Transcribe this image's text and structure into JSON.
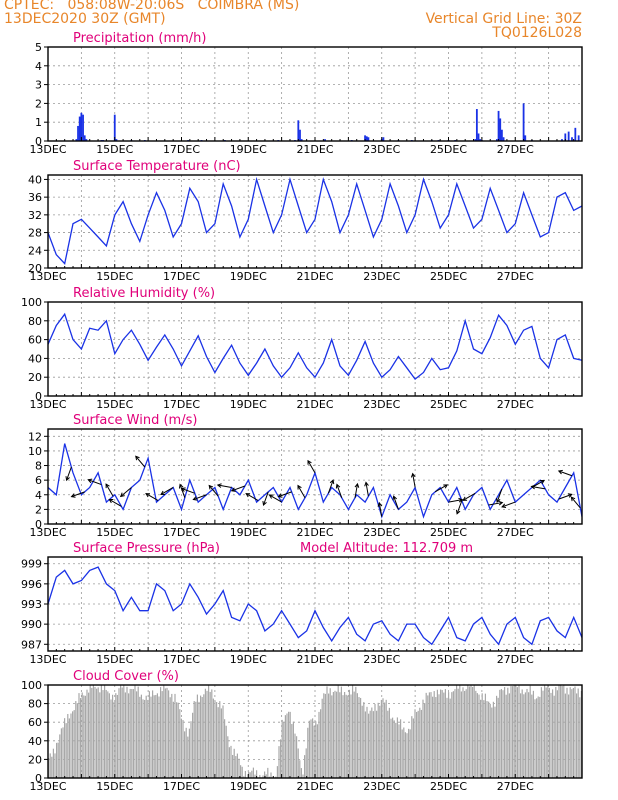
{
  "header": {
    "line1_left": "CPTEC:   058:08W-20:06S   COIMBRA (MS)",
    "line2_left": "13DEC2020 30Z (GMT)",
    "line2_right": "Vertical Grid Line: 30Z",
    "line3_right": "TQ0126L028"
  },
  "colors": {
    "header": "#e8862a",
    "title": "#e0007a",
    "series": "#1a32e6",
    "grid": "#9a9a9a",
    "cloud": "#a8a8a8"
  },
  "chart_data": [
    {
      "id": "precip",
      "type": "bar",
      "title": "Precipitation (mm/h)",
      "ylim": [
        0,
        5
      ],
      "yticks": [
        "0",
        "1",
        "2",
        "3",
        "4",
        "5"
      ],
      "xlim": [
        0,
        16
      ],
      "xticks": [
        "13DEC",
        "15DEC",
        "17DEC",
        "19DEC",
        "21DEC",
        "23DEC",
        "25DEC",
        "27DEC"
      ],
      "xticks_pos": [
        0,
        2,
        4,
        6,
        8,
        10,
        12,
        14
      ],
      "x": [
        0.85,
        0.9,
        0.95,
        1.0,
        1.05,
        1.1,
        1.15,
        1.6,
        1.65,
        2.0,
        2.05,
        2.5,
        2.9,
        4.2,
        4.6,
        5.3,
        6.9,
        7.4,
        7.5,
        7.55,
        7.6,
        8.3,
        9.1,
        9.5,
        9.55,
        9.6,
        10.0,
        10.05,
        10.5,
        10.9,
        11.5,
        11.7,
        12.0,
        12.2,
        12.8,
        12.85,
        12.9,
        12.95,
        13.0,
        13.45,
        13.5,
        13.55,
        13.6,
        13.65,
        14.25,
        14.3,
        14.5,
        15.4,
        15.5,
        15.6,
        15.7,
        15.8,
        15.9
      ],
      "values": [
        0.1,
        0.8,
        1.3,
        1.5,
        1.4,
        0.3,
        0.1,
        0.05,
        0.05,
        1.4,
        0.1,
        0.05,
        0.05,
        0.05,
        0.05,
        0.05,
        0.05,
        0.05,
        1.1,
        0.6,
        0.1,
        0.1,
        0.05,
        0.3,
        0.25,
        0.2,
        0.1,
        0.2,
        0.05,
        0.05,
        0.05,
        0.05,
        0.05,
        0.05,
        0.1,
        1.7,
        0.4,
        0.1,
        0.05,
        0.1,
        1.6,
        1.2,
        0.6,
        0.2,
        2.0,
        0.3,
        0.05,
        0.1,
        0.4,
        0.5,
        0.2,
        0.7,
        0.3
      ]
    },
    {
      "id": "temp",
      "type": "line",
      "title": "Surface Temperature (nC)",
      "ylim": [
        20,
        41
      ],
      "yticks": [
        "20",
        "24",
        "28",
        "32",
        "36",
        "40"
      ],
      "ytick_values": [
        20,
        24,
        28,
        32,
        36,
        40
      ],
      "xlim": [
        0,
        16
      ],
      "xticks": [
        "13DEC",
        "15DEC",
        "17DEC",
        "19DEC",
        "21DEC",
        "23DEC",
        "25DEC",
        "27DEC"
      ],
      "x": [
        0,
        0.25,
        0.5,
        0.75,
        1.0,
        1.25,
        1.5,
        1.75,
        2.0,
        2.25,
        2.5,
        2.75,
        3.0,
        3.25,
        3.5,
        3.75,
        4.0,
        4.25,
        4.5,
        4.75,
        5.0,
        5.25,
        5.5,
        5.75,
        6.0,
        6.25,
        6.5,
        6.75,
        7.0,
        7.25,
        7.5,
        7.75,
        8.0,
        8.25,
        8.5,
        8.75,
        9.0,
        9.25,
        9.5,
        9.75,
        10.0,
        10.25,
        10.5,
        10.75,
        11.0,
        11.25,
        11.5,
        11.75,
        12.0,
        12.25,
        12.5,
        12.75,
        13.0,
        13.25,
        13.5,
        13.75,
        14.0,
        14.25,
        14.5,
        14.75,
        15.0,
        15.25,
        15.5,
        15.75,
        16.0
      ],
      "values": [
        28,
        23,
        21,
        30,
        31,
        29,
        27,
        25,
        32,
        35,
        30,
        26,
        32,
        37,
        33,
        27,
        30,
        38,
        35,
        28,
        30,
        39,
        34,
        27,
        31,
        40,
        34,
        28,
        32,
        40,
        34,
        28,
        31,
        40,
        35,
        28,
        32,
        39,
        33,
        27,
        31,
        39,
        34,
        28,
        32,
        40,
        35,
        29,
        32,
        39,
        34,
        29,
        31,
        38,
        33,
        28,
        30,
        37,
        32,
        27,
        28,
        36,
        37,
        33,
        34
      ]
    },
    {
      "id": "rh",
      "type": "line",
      "title": "Relative Humidity (%)",
      "ylim": [
        0,
        100
      ],
      "yticks": [
        "0",
        "20",
        "40",
        "60",
        "80",
        "100"
      ],
      "ytick_values": [
        0,
        20,
        40,
        60,
        80,
        100
      ],
      "xlim": [
        0,
        16
      ],
      "xticks": [
        "13DEC",
        "15DEC",
        "17DEC",
        "19DEC",
        "21DEC",
        "23DEC",
        "25DEC",
        "27DEC"
      ],
      "x": [
        0,
        0.25,
        0.5,
        0.75,
        1.0,
        1.25,
        1.5,
        1.75,
        2.0,
        2.25,
        2.5,
        2.75,
        3.0,
        3.25,
        3.5,
        3.75,
        4.0,
        4.25,
        4.5,
        4.75,
        5.0,
        5.25,
        5.5,
        5.75,
        6.0,
        6.25,
        6.5,
        6.75,
        7.0,
        7.25,
        7.5,
        7.75,
        8.0,
        8.25,
        8.5,
        8.75,
        9.0,
        9.25,
        9.5,
        9.75,
        10.0,
        10.25,
        10.5,
        10.75,
        11.0,
        11.25,
        11.5,
        11.75,
        12.0,
        12.25,
        12.5,
        12.75,
        13.0,
        13.25,
        13.5,
        13.75,
        14.0,
        14.25,
        14.5,
        14.75,
        15.0,
        15.25,
        15.5,
        15.75,
        16.0
      ],
      "values": [
        55,
        75,
        87,
        60,
        50,
        72,
        70,
        80,
        45,
        60,
        70,
        55,
        38,
        52,
        65,
        50,
        32,
        48,
        64,
        42,
        25,
        40,
        54,
        35,
        22,
        35,
        50,
        32,
        20,
        30,
        46,
        30,
        20,
        35,
        60,
        32,
        22,
        38,
        58,
        35,
        20,
        28,
        42,
        30,
        18,
        25,
        40,
        28,
        30,
        48,
        80,
        50,
        45,
        62,
        86,
        75,
        55,
        70,
        74,
        40,
        30,
        60,
        65,
        40,
        38
      ]
    },
    {
      "id": "wind",
      "type": "line",
      "title": "Surface Wind (m/s)",
      "ylim": [
        0,
        13
      ],
      "yticks": [
        "0",
        "2",
        "4",
        "6",
        "8",
        "10",
        "12"
      ],
      "ytick_values": [
        0,
        2,
        4,
        6,
        8,
        10,
        12
      ],
      "xlim": [
        0,
        16
      ],
      "xticks": [
        "13DEC",
        "15DEC",
        "17DEC",
        "19DEC",
        "21DEC",
        "23DEC",
        "25DEC",
        "27DEC"
      ],
      "x": [
        0,
        0.25,
        0.5,
        0.75,
        1.0,
        1.25,
        1.5,
        1.75,
        2.0,
        2.25,
        2.5,
        2.75,
        3.0,
        3.25,
        3.5,
        3.75,
        4.0,
        4.25,
        4.5,
        4.75,
        5.0,
        5.25,
        5.5,
        5.75,
        6.0,
        6.25,
        6.5,
        6.75,
        7.0,
        7.25,
        7.5,
        7.75,
        8.0,
        8.25,
        8.5,
        8.75,
        9.0,
        9.25,
        9.5,
        9.75,
        10.0,
        10.25,
        10.5,
        10.75,
        11.0,
        11.25,
        11.5,
        11.75,
        12.0,
        12.25,
        12.5,
        12.75,
        13.0,
        13.25,
        13.5,
        13.75,
        14.0,
        14.25,
        14.5,
        14.75,
        15.0,
        15.25,
        15.5,
        15.75,
        16.0
      ],
      "values": [
        5,
        4,
        11,
        7,
        4,
        5,
        7,
        3,
        4,
        2,
        5,
        6,
        9,
        3,
        4,
        5,
        2,
        6,
        3,
        4,
        5,
        2,
        5,
        4,
        6,
        3,
        4,
        5,
        3,
        5,
        2,
        4,
        7,
        3,
        5,
        4,
        2,
        4,
        3,
        5,
        1,
        4,
        2,
        3,
        5,
        1,
        4,
        5,
        3,
        5,
        2,
        4,
        5,
        2,
        4,
        6,
        3,
        4,
        5,
        6,
        4,
        3,
        5,
        7,
        1
      ],
      "arrows": [
        {
          "x": 0.7,
          "dir": 200
        },
        {
          "x": 1.1,
          "dir": 250
        },
        {
          "x": 1.6,
          "dir": 290
        },
        {
          "x": 1.95,
          "dir": 330
        },
        {
          "x": 2.2,
          "dir": 300
        },
        {
          "x": 2.5,
          "dir": 230
        },
        {
          "x": 2.9,
          "dir": 320
        },
        {
          "x": 3.3,
          "dir": 300
        },
        {
          "x": 3.75,
          "dir": 240
        },
        {
          "x": 4.1,
          "dir": 340
        },
        {
          "x": 4.4,
          "dir": 290
        },
        {
          "x": 4.75,
          "dir": 250
        },
        {
          "x": 5.1,
          "dir": 320
        },
        {
          "x": 5.5,
          "dir": 280
        },
        {
          "x": 5.9,
          "dir": 250
        },
        {
          "x": 6.3,
          "dir": 300
        },
        {
          "x": 6.6,
          "dir": 200
        },
        {
          "x": 7.0,
          "dir": 300
        },
        {
          "x": 7.3,
          "dir": 250
        },
        {
          "x": 7.7,
          "dir": 330
        },
        {
          "x": 8.0,
          "dir": 330
        },
        {
          "x": 8.4,
          "dir": 20
        },
        {
          "x": 8.8,
          "dir": 340
        },
        {
          "x": 9.2,
          "dir": 10
        },
        {
          "x": 9.6,
          "dir": 350
        },
        {
          "x": 10.0,
          "dir": 350
        },
        {
          "x": 10.5,
          "dir": 340
        },
        {
          "x": 11.0,
          "dir": 350
        },
        {
          "x": 11.6,
          "dir": 60
        },
        {
          "x": 12.0,
          "dir": 80
        },
        {
          "x": 12.4,
          "dir": 200
        },
        {
          "x": 12.8,
          "dir": 240
        },
        {
          "x": 13.2,
          "dir": 80
        },
        {
          "x": 13.6,
          "dir": 200
        },
        {
          "x": 14.0,
          "dir": 250
        },
        {
          "x": 14.5,
          "dir": 60
        },
        {
          "x": 14.9,
          "dir": 280
        },
        {
          "x": 15.3,
          "dir": 70
        },
        {
          "x": 15.7,
          "dir": 290
        },
        {
          "x": 15.95,
          "dir": 320
        }
      ]
    },
    {
      "id": "pres",
      "type": "line",
      "title": "Surface Pressure (hPa)",
      "subtitle": "Model Altitude: 112.709 m",
      "ylim": [
        986,
        1000
      ],
      "yticks": [
        "987",
        "990",
        "993",
        "996",
        "999"
      ],
      "ytick_values": [
        987,
        990,
        993,
        996,
        999
      ],
      "xlim": [
        0,
        16
      ],
      "xticks": [
        "13DEC",
        "15DEC",
        "17DEC",
        "19DEC",
        "21DEC",
        "23DEC",
        "25DEC",
        "27DEC"
      ],
      "x": [
        0,
        0.25,
        0.5,
        0.75,
        1.0,
        1.25,
        1.5,
        1.75,
        2.0,
        2.25,
        2.5,
        2.75,
        3.0,
        3.25,
        3.5,
        3.75,
        4.0,
        4.25,
        4.5,
        4.75,
        5.0,
        5.25,
        5.5,
        5.75,
        6.0,
        6.25,
        6.5,
        6.75,
        7.0,
        7.25,
        7.5,
        7.75,
        8.0,
        8.25,
        8.5,
        8.75,
        9.0,
        9.25,
        9.5,
        9.75,
        10.0,
        10.25,
        10.5,
        10.75,
        11.0,
        11.25,
        11.5,
        11.75,
        12.0,
        12.25,
        12.5,
        12.75,
        13.0,
        13.25,
        13.5,
        13.75,
        14.0,
        14.25,
        14.5,
        14.75,
        15.0,
        15.25,
        15.5,
        15.75,
        16.0
      ],
      "values": [
        993,
        997,
        998,
        996,
        996.5,
        998,
        998.5,
        996,
        995,
        992,
        994,
        992,
        992,
        996,
        995,
        992,
        993,
        996,
        994,
        991.5,
        993,
        995,
        991,
        990.5,
        993,
        992,
        989,
        990,
        992,
        990,
        988,
        989,
        992,
        989.5,
        987.5,
        989.5,
        991,
        988.5,
        987.5,
        990,
        990.5,
        988.5,
        987.5,
        990,
        990,
        988,
        987,
        989,
        991,
        988,
        987.5,
        990,
        991,
        988.5,
        987,
        990,
        991,
        988,
        987,
        990.5,
        991,
        989,
        988,
        991,
        988
      ]
    },
    {
      "id": "cloud",
      "type": "area",
      "title": "Cloud Cover (%)",
      "ylim": [
        0,
        100
      ],
      "yticks": [
        "0",
        "20",
        "40",
        "60",
        "80",
        "100"
      ],
      "ytick_values": [
        0,
        20,
        40,
        60,
        80,
        100
      ],
      "xlim": [
        0,
        16
      ],
      "xticks": [
        "13DEC",
        "15DEC",
        "17DEC",
        "19DEC",
        "21DEC",
        "23DEC",
        "25DEC",
        "27DEC"
      ],
      "x": [
        0,
        0.2,
        0.4,
        0.6,
        0.8,
        1.0,
        1.2,
        1.4,
        1.6,
        1.8,
        2.0,
        2.2,
        2.4,
        2.6,
        2.8,
        3.0,
        3.2,
        3.4,
        3.6,
        3.8,
        4.0,
        4.2,
        4.4,
        4.6,
        4.8,
        5.0,
        5.2,
        5.4,
        5.6,
        5.8,
        6.0,
        6.2,
        6.4,
        6.6,
        6.8,
        7.0,
        7.2,
        7.4,
        7.6,
        7.8,
        8.0,
        8.2,
        8.4,
        8.6,
        8.8,
        9.0,
        9.2,
        9.4,
        9.6,
        9.8,
        10.0,
        10.2,
        10.4,
        10.6,
        10.8,
        11.0,
        11.2,
        11.4,
        11.6,
        11.8,
        12.0,
        12.2,
        12.4,
        12.6,
        12.8,
        13.0,
        13.2,
        13.4,
        13.6,
        13.8,
        14.0,
        14.2,
        14.4,
        14.6,
        14.8,
        15.0,
        15.2,
        15.4,
        15.6,
        15.8,
        16.0
      ],
      "values": [
        18,
        35,
        50,
        70,
        75,
        92,
        95,
        98,
        100,
        88,
        90,
        96,
        98,
        94,
        90,
        85,
        92,
        96,
        93,
        88,
        60,
        50,
        82,
        92,
        95,
        86,
        75,
        40,
        25,
        10,
        5,
        5,
        4,
        3,
        2,
        55,
        78,
        45,
        5,
        60,
        58,
        85,
        94,
        96,
        90,
        95,
        92,
        85,
        66,
        80,
        82,
        75,
        60,
        55,
        52,
        70,
        82,
        88,
        95,
        90,
        92,
        95,
        98,
        100,
        96,
        88,
        78,
        85,
        93,
        98,
        99,
        96,
        92,
        88,
        95,
        98,
        94,
        99,
        96,
        92,
        95
      ]
    }
  ]
}
